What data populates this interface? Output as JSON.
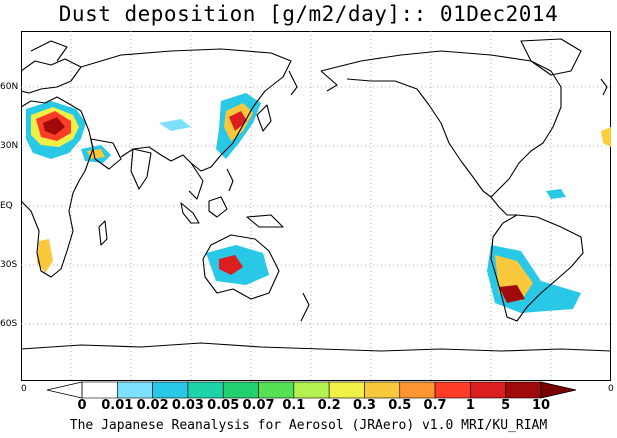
{
  "title": "Dust deposition [g/m2/day]:: 01Dec2014",
  "lat_labels": [
    "60N",
    "30N",
    "EQ",
    "30S",
    "60S"
  ],
  "colorbar": {
    "left_edge_label": "0",
    "right_edge_label": "0",
    "levels": [
      "0",
      "0.01",
      "0.02",
      "0.03",
      "0.05",
      "0.07",
      "0.1",
      "0.2",
      "0.3",
      "0.5",
      "0.7",
      "1",
      "5",
      "10"
    ],
    "colors": [
      "#ffffff",
      "#7ee0ff",
      "#28c8e6",
      "#1ed2aa",
      "#22d070",
      "#55e055",
      "#b4f050",
      "#f0f046",
      "#fac83c",
      "#ff9632",
      "#ff3c28",
      "#dc1e1e",
      "#a00a0a",
      "#780000"
    ]
  },
  "footer": "The Japanese Reanalysis for Aerosol (JRAero) v1.0 MRI/KU_RIAM"
}
